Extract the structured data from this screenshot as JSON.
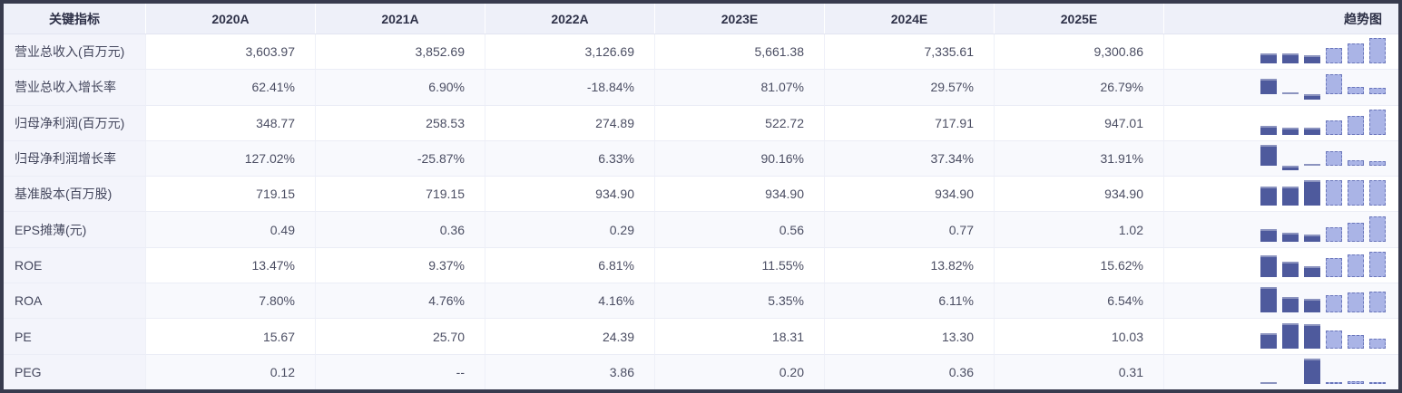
{
  "header": {
    "columns": [
      "关键指标",
      "2020A",
      "2021A",
      "2022A",
      "2023E",
      "2024E",
      "2025E",
      "趋势图"
    ]
  },
  "colors": {
    "border": "#383b4e",
    "header_bg": "#eef0f9",
    "header_text": "#2e3148",
    "label_bg": "#f3f4fb",
    "label_text": "#43465c",
    "value_text": "#4b4e63",
    "even_row_bg": "#f8f9fd",
    "positive_red": "#f24019",
    "negative_green": "#18a066",
    "bar_solid": "#4e5a9d",
    "bar_dashed_fill": "#aab4e6",
    "bar_dashed_border": "#6a76ba"
  },
  "rows": [
    {
      "label": "营业总收入(百万元)",
      "values": [
        "3,603.97",
        "3,852.69",
        "3,126.69",
        "5,661.38",
        "7,335.61",
        "9,300.86"
      ],
      "tones": [
        "",
        "",
        "",
        "",
        "",
        ""
      ],
      "trend": [
        3603.97,
        3852.69,
        3126.69,
        5661.38,
        7335.61,
        9300.86
      ]
    },
    {
      "label": "营业总收入增长率",
      "values": [
        "62.41%",
        "6.90%",
        "-18.84%",
        "81.07%",
        "29.57%",
        "26.79%"
      ],
      "tones": [
        "up",
        "up",
        "down",
        "up",
        "up",
        "up"
      ],
      "trend": [
        62.41,
        6.9,
        -18.84,
        81.07,
        29.57,
        26.79
      ]
    },
    {
      "label": "归母净利润(百万元)",
      "values": [
        "348.77",
        "258.53",
        "274.89",
        "522.72",
        "717.91",
        "947.01"
      ],
      "tones": [
        "",
        "",
        "",
        "",
        "",
        ""
      ],
      "trend": [
        348.77,
        258.53,
        274.89,
        522.72,
        717.91,
        947.01
      ]
    },
    {
      "label": "归母净利润增长率",
      "values": [
        "127.02%",
        "-25.87%",
        "6.33%",
        "90.16%",
        "37.34%",
        "31.91%"
      ],
      "tones": [
        "up",
        "down",
        "up",
        "up",
        "up",
        "up"
      ],
      "trend": [
        127.02,
        -25.87,
        6.33,
        90.16,
        37.34,
        31.91
      ]
    },
    {
      "label": "基准股本(百万股)",
      "values": [
        "719.15",
        "719.15",
        "934.90",
        "934.90",
        "934.90",
        "934.90"
      ],
      "tones": [
        "",
        "",
        "",
        "",
        "",
        ""
      ],
      "trend": [
        719.15,
        719.15,
        934.9,
        934.9,
        934.9,
        934.9
      ]
    },
    {
      "label": "EPS摊薄(元)",
      "values": [
        "0.49",
        "0.36",
        "0.29",
        "0.56",
        "0.77",
        "1.02"
      ],
      "tones": [
        "",
        "",
        "",
        "",
        "",
        ""
      ],
      "trend": [
        0.49,
        0.36,
        0.29,
        0.56,
        0.77,
        1.02
      ]
    },
    {
      "label": "ROE",
      "values": [
        "13.47%",
        "9.37%",
        "6.81%",
        "11.55%",
        "13.82%",
        "15.62%"
      ],
      "tones": [
        "",
        "",
        "",
        "",
        "",
        ""
      ],
      "trend": [
        13.47,
        9.37,
        6.81,
        11.55,
        13.82,
        15.62
      ]
    },
    {
      "label": "ROA",
      "values": [
        "7.80%",
        "4.76%",
        "4.16%",
        "5.35%",
        "6.11%",
        "6.54%"
      ],
      "tones": [
        "",
        "",
        "",
        "",
        "",
        ""
      ],
      "trend": [
        7.8,
        4.76,
        4.16,
        5.35,
        6.11,
        6.54
      ]
    },
    {
      "label": "PE",
      "values": [
        "15.67",
        "25.70",
        "24.39",
        "18.31",
        "13.30",
        "10.03"
      ],
      "tones": [
        "",
        "",
        "",
        "",
        "",
        ""
      ],
      "trend": [
        15.67,
        25.7,
        24.39,
        18.31,
        13.3,
        10.03
      ]
    },
    {
      "label": "PEG",
      "values": [
        "0.12",
        "--",
        "3.86",
        "0.20",
        "0.36",
        "0.31"
      ],
      "tones": [
        "",
        "",
        "",
        "",
        "",
        ""
      ],
      "trend": [
        0.12,
        null,
        3.86,
        0.2,
        0.36,
        0.31
      ]
    }
  ]
}
